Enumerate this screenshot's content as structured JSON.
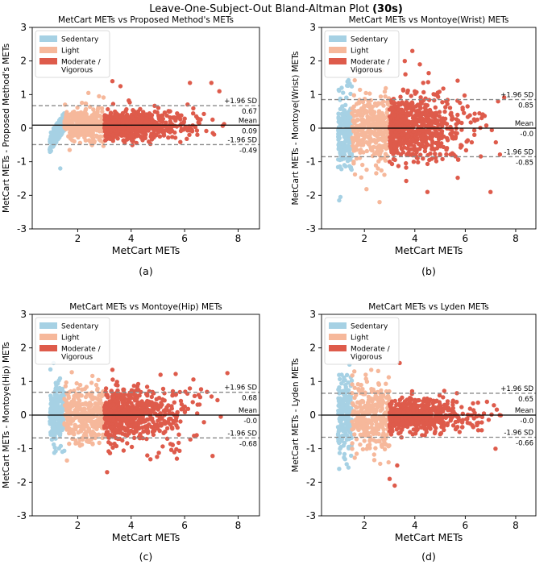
{
  "figure": {
    "title_prefix": "Leave-One-Subject-Out Bland-Altman Plot ",
    "title_bold": "(30s)"
  },
  "colors": {
    "sedentary": "#a6d1e4",
    "light": "#f6b89b",
    "moderate": "#de5b4b",
    "mean_line": "#000000",
    "sd_line": "#8a8a8a"
  },
  "chart_data": [
    {
      "type": "scatter",
      "panel_label": "(a)",
      "title": "MetCart METs vs Proposed Method's METs",
      "xlabel": "MetCart METs",
      "ylabel": "MetCart METs - Proposed Method's METs",
      "xlim": [
        0.3,
        8.8
      ],
      "ylim": [
        -3,
        3
      ],
      "xticks": [
        2,
        4,
        6,
        8
      ],
      "yticks": [
        -3,
        -2,
        -1,
        0,
        1,
        2,
        3
      ],
      "legend": {
        "position": "top-left",
        "entries": [
          "Sedentary",
          "Light",
          "Moderate /\nVigorous"
        ]
      },
      "mean": 0.09,
      "upper_loa": 0.67,
      "lower_loa": -0.49,
      "mean_label": "Mean",
      "mean_value_label": "0.09",
      "upper_label": "+1.96 SD",
      "upper_value_label": "0.67",
      "lower_label": "-1.96 SD",
      "lower_value_label": "-0.49",
      "spread": {
        "sed": 0.35,
        "light": 0.22,
        "mod": 0.2
      },
      "sed_trend": true,
      "outliers": [
        [
          1.35,
          -1.2
        ],
        [
          1.7,
          -0.65
        ],
        [
          2.4,
          1.05
        ],
        [
          2.8,
          0.95
        ],
        [
          3.3,
          1.4
        ],
        [
          3.6,
          1.25
        ],
        [
          6.2,
          1.35
        ],
        [
          7.0,
          1.35
        ],
        [
          7.3,
          1.1
        ]
      ],
      "seed": 11
    },
    {
      "type": "scatter",
      "panel_label": "(b)",
      "title": "MetCart METs vs Montoye(Wrist) METs",
      "xlabel": "MetCart METs",
      "ylabel": "MetCart METs - Montoye(Wrist) METs",
      "xlim": [
        0.3,
        8.8
      ],
      "ylim": [
        -3,
        3
      ],
      "xticks": [
        2,
        4,
        6,
        8
      ],
      "yticks": [
        -3,
        -2,
        -1,
        0,
        1,
        2,
        3
      ],
      "legend": {
        "position": "top-left",
        "entries": [
          "Sedentary",
          "Light",
          "Moderate /\nVigorous"
        ]
      },
      "mean": 0.0,
      "upper_loa": 0.85,
      "lower_loa": -0.85,
      "mean_label": "Mean",
      "mean_value_label": "-0.0",
      "upper_label": "+1.96 SD",
      "upper_value_label": "0.85",
      "lower_label": "-1.96 SD",
      "lower_value_label": "-0.85",
      "spread": {
        "sed": 0.55,
        "light": 0.5,
        "mod": 0.48
      },
      "sed_trend": false,
      "outliers": [
        [
          1.0,
          -2.15
        ],
        [
          1.05,
          -2.05
        ],
        [
          1.1,
          1.2
        ],
        [
          2.6,
          -2.2
        ],
        [
          3.6,
          2.0
        ],
        [
          3.9,
          2.3
        ],
        [
          4.5,
          -1.9
        ],
        [
          4.2,
          1.9
        ],
        [
          7.0,
          -1.9
        ],
        [
          7.3,
          0.8
        ]
      ],
      "seed": 23
    },
    {
      "type": "scatter",
      "panel_label": "(c)",
      "title": "MetCart METs vs Montoye(Hip) METs",
      "xlabel": "MetCart METs",
      "ylabel": "MetCart METs - Montoye(Hip) METs",
      "xlim": [
        0.3,
        8.8
      ],
      "ylim": [
        -3,
        3
      ],
      "xticks": [
        2,
        4,
        6,
        8
      ],
      "yticks": [
        -3,
        -2,
        -1,
        0,
        1,
        2,
        3
      ],
      "legend": {
        "position": "top-left",
        "entries": [
          "Sedentary",
          "Light",
          "Moderate /\nVigorous"
        ]
      },
      "mean": 0.0,
      "upper_loa": 0.68,
      "lower_loa": -0.68,
      "mean_label": "Mean",
      "mean_value_label": "-0.0",
      "upper_label": "+1.96 SD",
      "upper_value_label": "0.68",
      "lower_label": "-1.96 SD",
      "lower_value_label": "-0.68",
      "spread": {
        "sed": 0.45,
        "light": 0.42,
        "mod": 0.38
      },
      "sed_trend": false,
      "outliers": [
        [
          1.1,
          1.55
        ],
        [
          1.6,
          -1.35
        ],
        [
          3.1,
          -1.7
        ],
        [
          3.3,
          1.35
        ],
        [
          7.6,
          1.25
        ],
        [
          5.1,
          1.2
        ]
      ],
      "seed": 37
    },
    {
      "type": "scatter",
      "panel_label": "(d)",
      "title": "MetCart METs vs Lyden METs",
      "xlabel": "MetCart METs",
      "ylabel": "MetCart METs - Lyden METs",
      "xlim": [
        0.3,
        8.8
      ],
      "ylim": [
        -3,
        3
      ],
      "xticks": [
        2,
        4,
        6,
        8
      ],
      "yticks": [
        -3,
        -2,
        -1,
        0,
        1,
        2,
        3
      ],
      "legend": {
        "position": "top-left",
        "entries": [
          "Sedentary",
          "Light",
          "Moderate /\nVigorous"
        ]
      },
      "mean": 0.0,
      "upper_loa": 0.65,
      "lower_loa": -0.66,
      "mean_label": "Mean",
      "mean_value_label": "-0.0",
      "upper_label": "+1.96 SD",
      "upper_value_label": "0.65",
      "lower_label": "-1.96 SD",
      "lower_value_label": "-0.66",
      "spread": {
        "sed": 0.55,
        "light": 0.55,
        "mod": 0.22
      },
      "sed_trend": false,
      "outliers": [
        [
          1.0,
          -1.6
        ],
        [
          1.1,
          1.2
        ],
        [
          1.6,
          1.3
        ],
        [
          3.0,
          -1.9
        ],
        [
          3.2,
          -2.1
        ],
        [
          3.4,
          1.55
        ],
        [
          3.3,
          -1.5
        ],
        [
          7.2,
          -1.0
        ]
      ],
      "seed": 53
    }
  ]
}
